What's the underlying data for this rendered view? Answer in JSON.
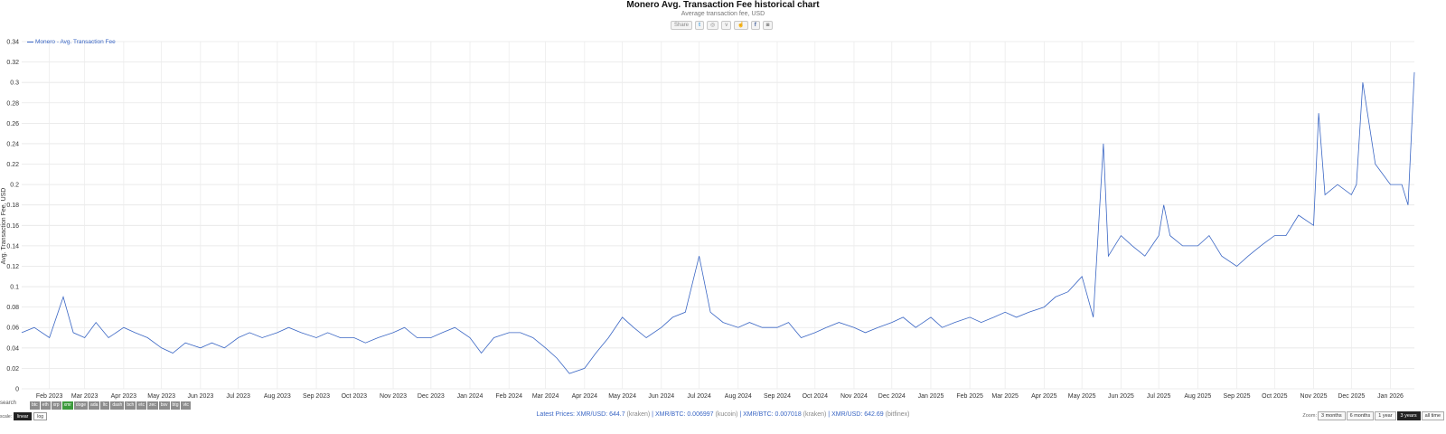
{
  "header": {
    "title": "Monero Avg. Transaction Fee historical chart",
    "subtitle": "Average transaction fee, USD",
    "share_label": "Share"
  },
  "controls": {
    "search_label": "search",
    "scale_label": "scale:",
    "scale_options": [
      "linear",
      "log"
    ],
    "scale_active": "linear",
    "currency_chips": [
      "btc",
      "eth",
      "xrp",
      "xmr",
      "doge",
      "ada",
      "ltc",
      "dash",
      "bch",
      "etc",
      "zec",
      "bsv",
      "btg",
      "vtc"
    ],
    "currency_active": "xmr"
  },
  "footer": {
    "prices_label": "Latest Prices:",
    "prices": [
      {
        "pair": "XMR/USD: 644.7",
        "source": "(kraken)"
      },
      {
        "pair": "XMR/BTC: 0.006997",
        "source": "(kucoin)"
      },
      {
        "pair": "XMR/BTC: 0.007018",
        "source": "(kraken)"
      },
      {
        "pair": "XMR/USD: 642.69",
        "source": "(bitfinex)"
      }
    ],
    "zoom_label": "Zoom:",
    "zoom_options": [
      "3 months",
      "6 months",
      "1 year",
      "3 years",
      "all time"
    ],
    "zoom_active": "3 years"
  },
  "chart_data": {
    "type": "line",
    "title": "Monero Avg. Transaction Fee historical chart",
    "subtitle": "Average transaction fee, USD",
    "ylabel": "Avg. Transaction Fee, USD",
    "xlabel": "",
    "ylim": [
      0,
      0.34
    ],
    "yticks": [
      "0",
      "0.02",
      "0.04",
      "0.06",
      "0.08",
      "0.1",
      "0.12",
      "0.14",
      "0.16",
      "0.18",
      "0.2",
      "0.22",
      "0.24",
      "0.26",
      "0.28",
      "0.3",
      "0.32",
      "0.34"
    ],
    "xlim": [
      "2023-01-10",
      "2026-01-20"
    ],
    "xticks": [
      "Feb 2023",
      "Mar 2023",
      "Apr 2023",
      "May 2023",
      "Jun 2023",
      "Jul 2023",
      "Aug 2023",
      "Sep 2023",
      "Oct 2023",
      "Nov 2023",
      "Dec 2023",
      "Jan 2024",
      "Feb 2024",
      "Mar 2024",
      "Apr 2024",
      "May 2024",
      "Jun 2024",
      "Jul 2024",
      "Aug 2024",
      "Sep 2024",
      "Oct 2024",
      "Nov 2024",
      "Dec 2024",
      "Jan 2025",
      "Feb 2025",
      "Mar 2025",
      "Apr 2025",
      "May 2025",
      "Jun 2025",
      "Jul 2025",
      "Aug 2025",
      "Sep 2025",
      "Oct 2025",
      "Nov 2025",
      "Dec 2025",
      "Jan 2026"
    ],
    "legend_position": "top-left",
    "grid": true,
    "series": [
      {
        "name": "Monero - Avg. Transaction Fee",
        "color": "#3a66c4",
        "x": [
          "2023-01-10",
          "2023-01-20",
          "2023-02-01",
          "2023-02-12",
          "2023-02-20",
          "2023-03-01",
          "2023-03-10",
          "2023-03-20",
          "2023-04-01",
          "2023-04-10",
          "2023-04-20",
          "2023-05-01",
          "2023-05-10",
          "2023-05-20",
          "2023-06-01",
          "2023-06-10",
          "2023-06-20",
          "2023-07-01",
          "2023-07-10",
          "2023-07-20",
          "2023-08-01",
          "2023-08-10",
          "2023-08-20",
          "2023-09-01",
          "2023-09-10",
          "2023-09-20",
          "2023-10-01",
          "2023-10-10",
          "2023-10-20",
          "2023-11-01",
          "2023-11-10",
          "2023-11-20",
          "2023-12-01",
          "2023-12-10",
          "2023-12-20",
          "2024-01-01",
          "2024-01-10",
          "2024-01-20",
          "2024-02-01",
          "2024-02-10",
          "2024-02-20",
          "2024-03-01",
          "2024-03-10",
          "2024-03-20",
          "2024-04-01",
          "2024-04-10",
          "2024-04-20",
          "2024-05-01",
          "2024-05-10",
          "2024-05-20",
          "2024-06-01",
          "2024-06-10",
          "2024-06-20",
          "2024-07-01",
          "2024-07-10",
          "2024-07-20",
          "2024-08-01",
          "2024-08-10",
          "2024-08-20",
          "2024-09-01",
          "2024-09-10",
          "2024-09-20",
          "2024-10-01",
          "2024-10-10",
          "2024-10-20",
          "2024-11-01",
          "2024-11-10",
          "2024-11-20",
          "2024-12-01",
          "2024-12-10",
          "2024-12-20",
          "2025-01-01",
          "2025-01-10",
          "2025-01-20",
          "2025-02-01",
          "2025-02-10",
          "2025-02-20",
          "2025-03-01",
          "2025-03-10",
          "2025-03-20",
          "2025-04-01",
          "2025-04-10",
          "2025-04-20",
          "2025-05-01",
          "2025-05-10",
          "2025-05-18",
          "2025-05-22",
          "2025-06-01",
          "2025-06-10",
          "2025-06-20",
          "2025-07-01",
          "2025-07-05",
          "2025-07-10",
          "2025-07-20",
          "2025-08-01",
          "2025-08-10",
          "2025-08-20",
          "2025-09-01",
          "2025-09-10",
          "2025-09-20",
          "2025-10-01",
          "2025-10-10",
          "2025-10-20",
          "2025-11-01",
          "2025-11-05",
          "2025-11-10",
          "2025-11-20",
          "2025-12-01",
          "2025-12-05",
          "2025-12-10",
          "2025-12-20",
          "2026-01-01",
          "2026-01-10",
          "2026-01-15",
          "2026-01-20"
        ],
        "y": [
          0.055,
          0.06,
          0.05,
          0.09,
          0.055,
          0.05,
          0.065,
          0.05,
          0.06,
          0.055,
          0.05,
          0.04,
          0.035,
          0.045,
          0.04,
          0.045,
          0.04,
          0.05,
          0.055,
          0.05,
          0.055,
          0.06,
          0.055,
          0.05,
          0.055,
          0.05,
          0.05,
          0.045,
          0.05,
          0.055,
          0.06,
          0.05,
          0.05,
          0.055,
          0.06,
          0.05,
          0.035,
          0.05,
          0.055,
          0.055,
          0.05,
          0.04,
          0.03,
          0.015,
          0.02,
          0.035,
          0.05,
          0.07,
          0.06,
          0.05,
          0.06,
          0.07,
          0.075,
          0.13,
          0.075,
          0.065,
          0.06,
          0.065,
          0.06,
          0.06,
          0.065,
          0.05,
          0.055,
          0.06,
          0.065,
          0.06,
          0.055,
          0.06,
          0.065,
          0.07,
          0.06,
          0.07,
          0.06,
          0.065,
          0.07,
          0.065,
          0.07,
          0.075,
          0.07,
          0.075,
          0.08,
          0.09,
          0.095,
          0.11,
          0.07,
          0.24,
          0.13,
          0.15,
          0.14,
          0.13,
          0.15,
          0.18,
          0.15,
          0.14,
          0.14,
          0.15,
          0.13,
          0.12,
          0.13,
          0.14,
          0.15,
          0.15,
          0.17,
          0.16,
          0.27,
          0.19,
          0.2,
          0.19,
          0.2,
          0.3,
          0.22,
          0.2,
          0.2,
          0.18,
          0.31
        ]
      }
    ]
  }
}
